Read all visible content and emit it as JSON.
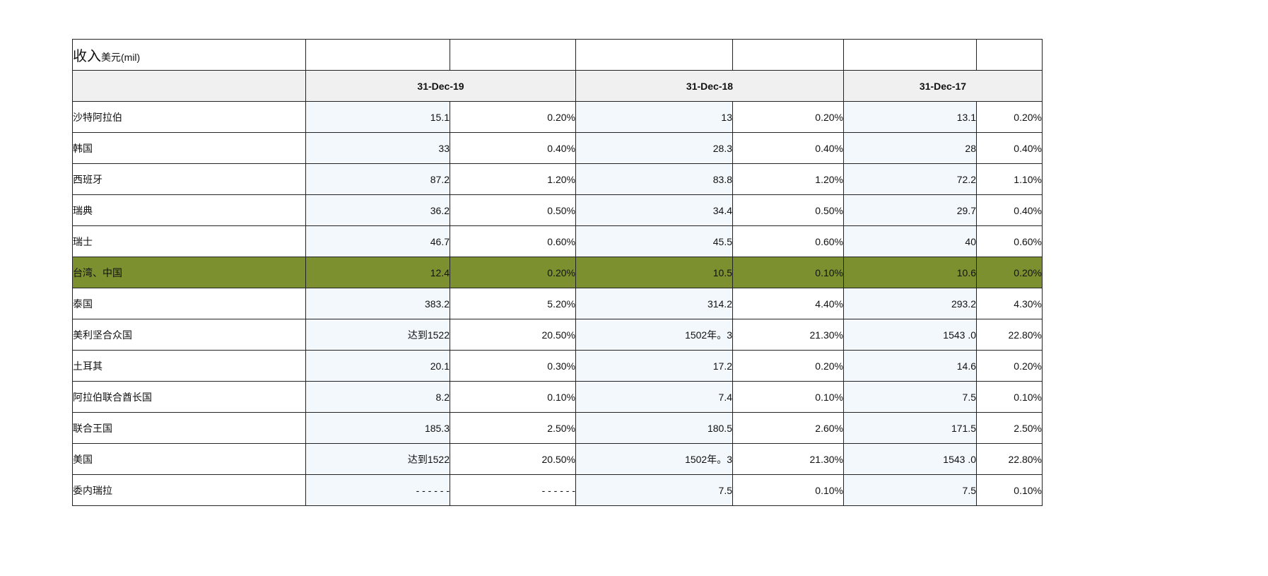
{
  "title": {
    "main": "收入",
    "sub": "美元(mil)"
  },
  "periods": [
    "31-Dec-19",
    "31-Dec-18",
    "31-Dec-17"
  ],
  "rows": [
    {
      "country": "沙特阿拉伯",
      "cells": [
        "15.1",
        "0.20%",
        "13",
        "0.20%",
        "13.1",
        "0.20%"
      ]
    },
    {
      "country": "韩国",
      "cells": [
        "33",
        "0.40%",
        "28.3",
        "0.40%",
        "28",
        "0.40%"
      ]
    },
    {
      "country": "西班牙",
      "cells": [
        "87.2",
        "1.20%",
        "83.8",
        "1.20%",
        "72.2",
        "1.10%"
      ]
    },
    {
      "country": "瑞典",
      "cells": [
        "36.2",
        "0.50%",
        "34.4",
        "0.50%",
        "29.7",
        "0.40%"
      ]
    },
    {
      "country": "瑞士",
      "cells": [
        "46.7",
        "0.60%",
        "45.5",
        "0.60%",
        "40",
        "0.60%"
      ]
    },
    {
      "country": "台湾、中国",
      "cells": [
        "12.4",
        "0.20%",
        "10.5",
        "0.10%",
        "10.6",
        "0.20%"
      ]
    },
    {
      "country": "泰国",
      "cells": [
        "383.2",
        "5.20%",
        "314.2",
        "4.40%",
        "293.2",
        "4.30%"
      ]
    },
    {
      "country": "美利坚合众国",
      "cells": [
        "达到1522",
        "20.50%",
        "1502年。3",
        "21.30%",
        "1543 .0",
        "22.80%"
      ]
    },
    {
      "country": "土耳其",
      "cells": [
        "20.1",
        "0.30%",
        "17.2",
        "0.20%",
        "14.6",
        "0.20%"
      ]
    },
    {
      "country": "阿拉伯联合酋长国",
      "cells": [
        "8.2",
        "0.10%",
        "7.4",
        "0.10%",
        "7.5",
        "0.10%"
      ]
    },
    {
      "country": "联合王国",
      "cells": [
        "185.3",
        "2.50%",
        "180.5",
        "2.60%",
        "171.5",
        "2.50%"
      ]
    },
    {
      "country": "美国",
      "cells": [
        "达到1522",
        "20.50%",
        "1502年。3",
        "21.30%",
        "1543 .0",
        "22.80%"
      ]
    },
    {
      "country": "委内瑞拉",
      "cells": [
        "- - - - - -",
        "- - - - - -",
        "7.5",
        "0.10%",
        "7.5",
        "0.10%"
      ]
    }
  ],
  "highlight_color": "#7c9030"
}
